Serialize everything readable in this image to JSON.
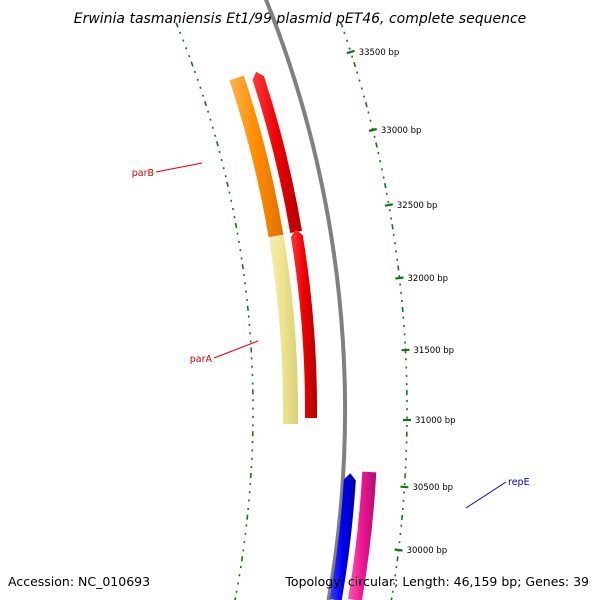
{
  "title": "Erwinia tasmaniensis Et1/99 plasmid pET46, complete sequence",
  "footer": {
    "accession": "Accession: NC_010693",
    "summary": "Topology: circular; Length: 46,159 bp; Genes: 39"
  },
  "ticks": [
    {
      "label": "33500 bp"
    },
    {
      "label": "33000 bp"
    },
    {
      "label": "32500 bp"
    },
    {
      "label": "32000 bp"
    },
    {
      "label": "31500 bp"
    },
    {
      "label": "31000 bp"
    },
    {
      "label": "30500 bp"
    },
    {
      "label": "30000 bp"
    }
  ],
  "genes": [
    {
      "name": "parB",
      "color": "#dd0000"
    },
    {
      "name": "parA",
      "color": "#dd0000"
    },
    {
      "name": "repE",
      "color": "#0000cc"
    }
  ],
  "colors": {
    "backbone": "#808080",
    "tick_marks": "#117711",
    "orange_cds": "#ff8c00",
    "yellow_cds": "#ede38e",
    "red_cds": "#ee0000",
    "blue_cds": "#0000ee",
    "pink_cds": "#ee1493"
  }
}
